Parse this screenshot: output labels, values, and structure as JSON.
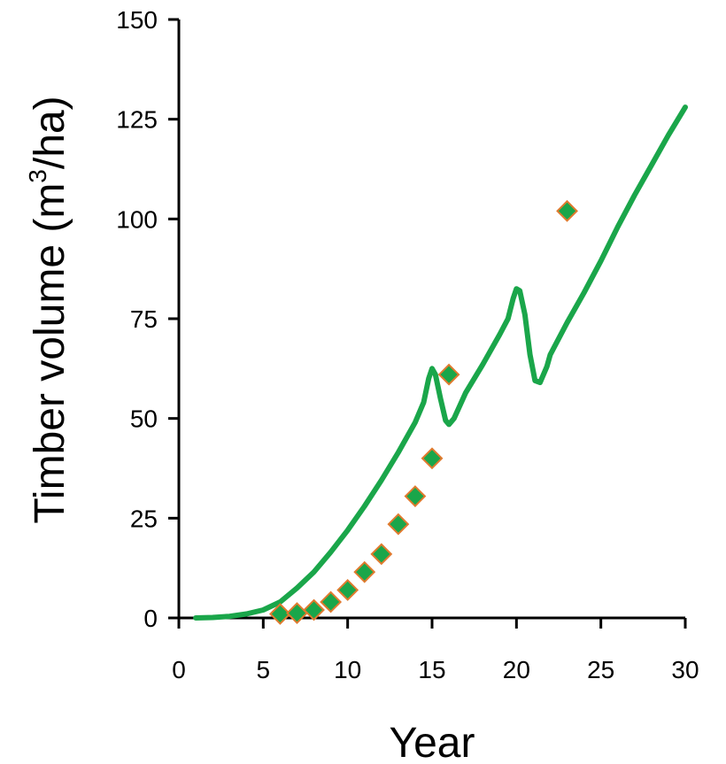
{
  "chart_data": {
    "type": "line",
    "title": "",
    "xlabel": "Year",
    "ylabel": "Timber volume (m³/ha)",
    "ylabel_parts": {
      "before": "Timber volume (m",
      "sup": "3",
      "after": "/ha)"
    },
    "xlim": [
      0,
      30
    ],
    "ylim": [
      0,
      150
    ],
    "xticks": [
      0,
      5,
      10,
      15,
      20,
      25,
      30
    ],
    "yticks": [
      0,
      25,
      50,
      75,
      100,
      125,
      150
    ],
    "grid": false,
    "legend": "none",
    "series": [
      {
        "kind": "line",
        "color": "#1aa64a",
        "points": [
          [
            1,
            0
          ],
          [
            2,
            0.1
          ],
          [
            3,
            0.4
          ],
          [
            4,
            1.0
          ],
          [
            5,
            2.0
          ],
          [
            6,
            4.0
          ],
          [
            7,
            7.5
          ],
          [
            8,
            11.5
          ],
          [
            9,
            16.5
          ],
          [
            10,
            22
          ],
          [
            11,
            28
          ],
          [
            12,
            34.5
          ],
          [
            13,
            41.5
          ],
          [
            14,
            49
          ],
          [
            14.5,
            54
          ],
          [
            14.8,
            60
          ],
          [
            15.0,
            62.5
          ],
          [
            15.2,
            61
          ],
          [
            15.5,
            55
          ],
          [
            15.8,
            49.5
          ],
          [
            16.0,
            48.5
          ],
          [
            16.3,
            50
          ],
          [
            17,
            56.5
          ],
          [
            18,
            63.5
          ],
          [
            19,
            71
          ],
          [
            19.5,
            75
          ],
          [
            19.8,
            80
          ],
          [
            20.0,
            82.5
          ],
          [
            20.2,
            82
          ],
          [
            20.5,
            76
          ],
          [
            20.8,
            66
          ],
          [
            21.1,
            59.5
          ],
          [
            21.4,
            59
          ],
          [
            21.8,
            63
          ],
          [
            22,
            66
          ],
          [
            23,
            74
          ],
          [
            24,
            81.5
          ],
          [
            25,
            89.5
          ],
          [
            26,
            98
          ],
          [
            27,
            106
          ],
          [
            28,
            113.5
          ],
          [
            29,
            121
          ],
          [
            30,
            128
          ]
        ]
      },
      {
        "kind": "scatter",
        "marker": "diamond",
        "fill": "#1aa64a",
        "edge": "#e07a2e",
        "points": [
          [
            6,
            1
          ],
          [
            7,
            1.2
          ],
          [
            8,
            2
          ],
          [
            9,
            4
          ],
          [
            10,
            7
          ],
          [
            11,
            11.5
          ],
          [
            12,
            16
          ],
          [
            13,
            23.5
          ],
          [
            14,
            30.5
          ],
          [
            15,
            40
          ],
          [
            16,
            61
          ],
          [
            23,
            102
          ]
        ]
      }
    ]
  }
}
